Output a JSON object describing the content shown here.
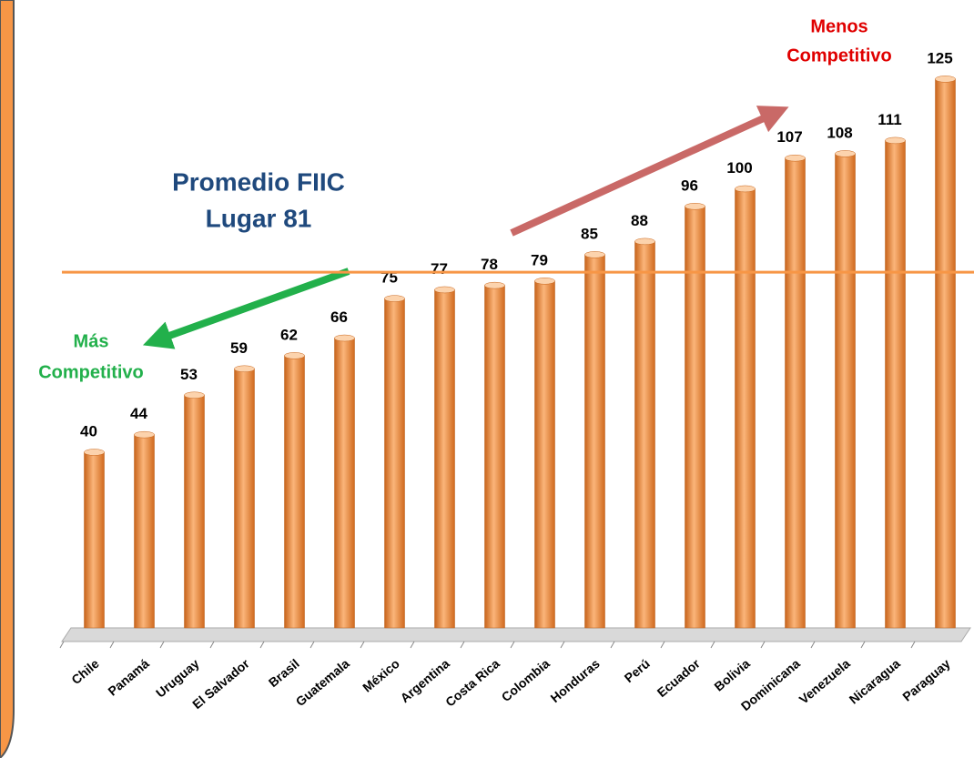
{
  "chart_data": {
    "type": "bar",
    "categories": [
      "Chile",
      "Panamá",
      "Uruguay",
      "El Salvador",
      "Brasil",
      "Guatemala",
      "México",
      "Argentina",
      "Costa Rica",
      "Colombia",
      "Honduras",
      "Perú",
      "Ecuador",
      "Bolivia",
      "Dominicana",
      "Venezuela",
      "Nicaragua",
      "Paraguay"
    ],
    "values": [
      40,
      44,
      53,
      59,
      62,
      66,
      75,
      77,
      78,
      79,
      85,
      88,
      96,
      100,
      107,
      108,
      111,
      125
    ],
    "color": "#f79646",
    "ylim": [
      0,
      143
    ],
    "average": 81,
    "average_color": "#f79646",
    "annotations": {
      "average_title": "Promedio FIIC",
      "average_label": "Lugar 81",
      "most": "Más",
      "most_2": "Competitivo",
      "least": "Menos",
      "least_2": "Competitivo"
    }
  }
}
